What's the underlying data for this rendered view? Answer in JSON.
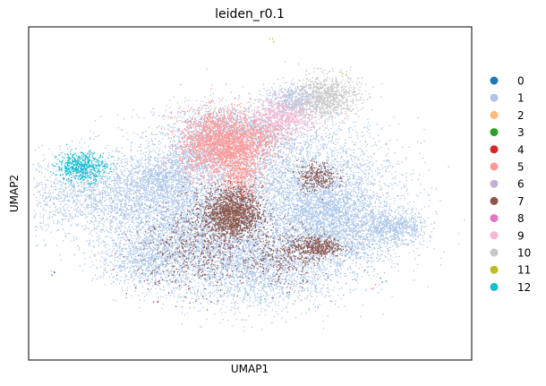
{
  "chart_data": {
    "type": "scatter",
    "title": "leiden_r0.1",
    "xlabel": "UMAP1",
    "ylabel": "UMAP2",
    "xlim": [
      0,
      100
    ],
    "ylim": [
      0,
      100
    ],
    "grid": false,
    "ticks": false,
    "legend_position": "right",
    "legend": [
      {
        "label": "0",
        "color": "#1f77b4"
      },
      {
        "label": "1",
        "color": "#aec7e8"
      },
      {
        "label": "2",
        "color": "#ffbb78"
      },
      {
        "label": "3",
        "color": "#2ca02c"
      },
      {
        "label": "4",
        "color": "#d62728"
      },
      {
        "label": "5",
        "color": "#ff9896"
      },
      {
        "label": "6",
        "color": "#c5b0d5"
      },
      {
        "label": "7",
        "color": "#8c564b"
      },
      {
        "label": "8",
        "color": "#e377c2"
      },
      {
        "label": "9",
        "color": "#f7b6d2"
      },
      {
        "label": "10",
        "color": "#c7c7c7"
      },
      {
        "label": "11",
        "color": "#bcbd22"
      },
      {
        "label": "12",
        "color": "#17becf"
      }
    ],
    "series": [
      {
        "cluster": "1",
        "color": "#aec7e8",
        "regions": [
          [
            45,
            68,
            15,
            8,
            1600
          ],
          [
            20,
            50,
            22,
            12,
            2400
          ],
          [
            38,
            40,
            18,
            16,
            3000
          ],
          [
            62,
            52,
            20,
            18,
            3200
          ],
          [
            52,
            28,
            18,
            12,
            2200
          ],
          [
            72,
            38,
            12,
            10,
            1300
          ],
          [
            83,
            40,
            6,
            4,
            500
          ],
          [
            38,
            60,
            8,
            6,
            500
          ],
          [
            60,
            78,
            6,
            4,
            400
          ],
          [
            66,
            45,
            10,
            10,
            900
          ],
          [
            27,
            30,
            10,
            8,
            800
          ],
          [
            30,
            55,
            6,
            5,
            400
          ]
        ]
      },
      {
        "cluster": "5",
        "color": "#ff9896",
        "regions": [
          [
            43,
            65,
            8,
            9,
            2000
          ],
          [
            48,
            56,
            4,
            8,
            500
          ],
          [
            52,
            67,
            6,
            6,
            400
          ]
        ]
      },
      {
        "cluster": "9",
        "color": "#f7b6d2",
        "regions": [
          [
            58,
            73,
            7,
            5,
            600
          ]
        ]
      },
      {
        "cluster": "10",
        "color": "#c7c7c7",
        "regions": [
          [
            67,
            79,
            7,
            6,
            900
          ]
        ]
      },
      {
        "cluster": "7",
        "color": "#8c564b",
        "regions": [
          [
            46,
            44,
            6,
            7,
            1400
          ],
          [
            65,
            34,
            5,
            3,
            400
          ],
          [
            65,
            55,
            4,
            4,
            250
          ],
          [
            38,
            33,
            12,
            12,
            500
          ],
          [
            57,
            31,
            8,
            8,
            300
          ]
        ]
      },
      {
        "cluster": "12",
        "color": "#17becf",
        "regions": [
          [
            12,
            58,
            5,
            4,
            500
          ]
        ]
      }
    ],
    "outliers": [
      {
        "cluster": "0",
        "color": "#1f77b4",
        "x": [
          62,
          80,
          6
        ],
        "y": [
          24,
          24,
          26
        ]
      },
      {
        "cluster": "11",
        "color": "#bcbd22",
        "x": [
          55,
          71
        ],
        "y": [
          96,
          86
        ]
      },
      {
        "cluster": "8",
        "color": "#e377c2",
        "x": [
          78
        ],
        "y": [
          22
        ]
      }
    ]
  }
}
